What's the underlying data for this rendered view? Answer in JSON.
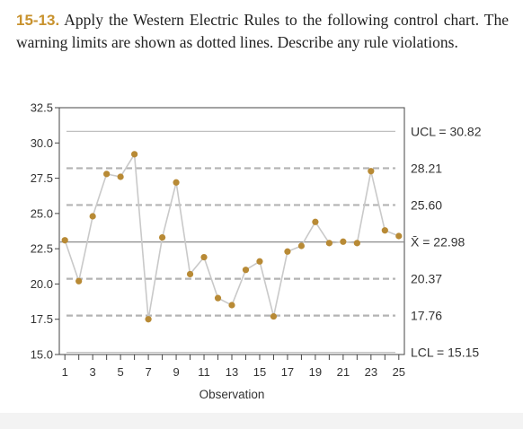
{
  "problem": {
    "number": "15-13.",
    "text": "Apply the Western Electric Rules to the following control chart. The warning limits are shown as dotted lines. Describe any rule violations."
  },
  "chart_data": {
    "type": "line",
    "xlabel": "Observation",
    "ylabel": "",
    "x": [
      1,
      2,
      3,
      4,
      5,
      6,
      7,
      8,
      9,
      10,
      11,
      12,
      13,
      14,
      15,
      16,
      17,
      18,
      19,
      20,
      21,
      22,
      23,
      24,
      25
    ],
    "values": [
      23.1,
      20.2,
      24.8,
      27.8,
      27.6,
      29.2,
      17.5,
      23.3,
      27.2,
      20.7,
      21.9,
      19.0,
      18.5,
      21.0,
      21.6,
      17.7,
      22.3,
      22.7,
      24.4,
      22.9,
      23.0,
      22.9,
      28.0,
      23.8,
      23.4
    ],
    "ylim": [
      15.0,
      32.5
    ],
    "xlim": [
      0.6,
      25.4
    ],
    "yticks": [
      "15.0",
      "17.5",
      "20.0",
      "22.5",
      "25.0",
      "27.5",
      "30.0",
      "32.5"
    ],
    "xticks": [
      "1",
      "3",
      "5",
      "7",
      "9",
      "11",
      "13",
      "15",
      "17",
      "19",
      "21",
      "23",
      "25"
    ],
    "limits": [
      {
        "label": "UCL = 30.82",
        "value": 30.82,
        "style": "solid"
      },
      {
        "label": "28.21",
        "value": 28.21,
        "style": "dashed"
      },
      {
        "label": "25.60",
        "value": 25.6,
        "style": "dashed"
      },
      {
        "label": "X̄ = 22.98",
        "value": 22.98,
        "style": "center"
      },
      {
        "label": "20.37",
        "value": 20.37,
        "style": "dashed"
      },
      {
        "label": "17.76",
        "value": 17.76,
        "style": "dashed"
      },
      {
        "label": "LCL = 15.15",
        "value": 15.15,
        "style": "solid"
      }
    ],
    "grid": false,
    "colors": {
      "point": "#b88a35",
      "line": "#c9c9c9",
      "limit_solid": "#c0c0c0",
      "limit_dashed": "#b3b3b3",
      "center": "#8c8c8c",
      "axis": "#444444"
    }
  }
}
